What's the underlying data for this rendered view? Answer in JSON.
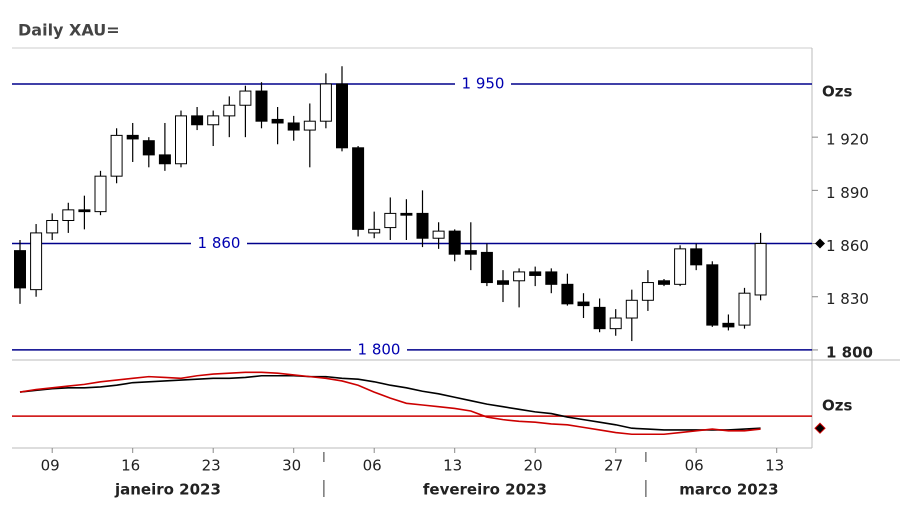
{
  "chart_data": [
    {
      "type": "candlestick",
      "title": "Daily XAU=",
      "unit_label": "Ozs",
      "x": [
        "2023-01-05",
        "2023-01-06",
        "2023-01-09",
        "2023-01-10",
        "2023-01-11",
        "2023-01-12",
        "2023-01-13",
        "2023-01-16",
        "2023-01-17",
        "2023-01-18",
        "2023-01-19",
        "2023-01-20",
        "2023-01-23",
        "2023-01-24",
        "2023-01-25",
        "2023-01-26",
        "2023-01-27",
        "2023-01-30",
        "2023-01-31",
        "2023-02-01",
        "2023-02-02",
        "2023-02-03",
        "2023-02-06",
        "2023-02-07",
        "2023-02-08",
        "2023-02-09",
        "2023-02-10",
        "2023-02-13",
        "2023-02-14",
        "2023-02-15",
        "2023-02-16",
        "2023-02-17",
        "2023-02-20",
        "2023-02-21",
        "2023-02-22",
        "2023-02-23",
        "2023-02-24",
        "2023-02-27",
        "2023-02-28",
        "2023-03-01",
        "2023-03-02",
        "2023-03-03",
        "2023-03-06",
        "2023-03-07",
        "2023-03-08",
        "2023-03-09",
        "2023-03-10"
      ],
      "open": [
        1856,
        1834,
        1866,
        1873,
        1879,
        1878,
        1898,
        1921,
        1918,
        1910,
        1905,
        1932,
        1927,
        1932,
        1938,
        1946,
        1930,
        1928,
        1924,
        1929,
        1950,
        1914,
        1866,
        1869,
        1877,
        1877,
        1863,
        1867,
        1856,
        1855,
        1839,
        1839,
        1844,
        1844,
        1837,
        1827,
        1824,
        1812,
        1818,
        1828,
        1839,
        1837,
        1857,
        1848,
        1815,
        1814,
        1831
      ],
      "high": [
        1862,
        1871,
        1877,
        1883,
        1887,
        1901,
        1925,
        1928,
        1920,
        1928,
        1935,
        1937,
        1935,
        1943,
        1949,
        1951,
        1937,
        1932,
        1939,
        1956,
        1960,
        1915,
        1878,
        1886,
        1885,
        1890,
        1872,
        1868,
        1872,
        1860,
        1845,
        1846,
        1847,
        1846,
        1843,
        1832,
        1829,
        1823,
        1834,
        1845,
        1840,
        1859,
        1860,
        1850,
        1820,
        1835,
        1866
      ],
      "low": [
        1826,
        1830,
        1862,
        1866,
        1868,
        1876,
        1894,
        1906,
        1903,
        1901,
        1903,
        1924,
        1915,
        1920,
        1920,
        1925,
        1916,
        1918,
        1903,
        1925,
        1912,
        1864,
        1863,
        1862,
        1862,
        1858,
        1857,
        1850,
        1845,
        1836,
        1827,
        1824,
        1836,
        1832,
        1825,
        1818,
        1810,
        1808,
        1805,
        1822,
        1836,
        1836,
        1845,
        1813,
        1811,
        1812,
        1828
      ],
      "close": [
        1835,
        1866,
        1873,
        1879,
        1878,
        1898,
        1921,
        1919,
        1910,
        1905,
        1932,
        1927,
        1932,
        1938,
        1946,
        1929,
        1928,
        1924,
        1929,
        1950,
        1914,
        1868,
        1868,
        1877,
        1876,
        1863,
        1867,
        1854,
        1854,
        1838,
        1837,
        1844,
        1842,
        1837,
        1826,
        1825,
        1812,
        1818,
        1828,
        1838,
        1837,
        1857,
        1848,
        1814,
        1813,
        1832,
        1860
      ],
      "up_color": "#ffffff",
      "down_color": "#000000",
      "ylim": [
        1795,
        1970
      ],
      "yticks": [
        {
          "value": 1800,
          "label": "1 800"
        },
        {
          "value": 1830,
          "label": "1 830"
        },
        {
          "value": 1860,
          "label": "1 860"
        },
        {
          "value": 1890,
          "label": "1 890"
        },
        {
          "value": 1920,
          "label": "1 920"
        }
      ],
      "levels": [
        {
          "value": 1950,
          "label": "1 950"
        },
        {
          "value": 1860,
          "label": "1 860"
        },
        {
          "value": 1800,
          "label": "1 800"
        }
      ],
      "level_color": "#00008b",
      "xticks": [
        {
          "value": "2023-01-09",
          "label": "09"
        },
        {
          "value": "2023-01-16",
          "label": "16"
        },
        {
          "value": "2023-01-23",
          "label": "23"
        },
        {
          "value": "2023-01-30",
          "label": "30"
        },
        {
          "value": "2023-02-06",
          "label": "06"
        },
        {
          "value": "2023-02-13",
          "label": "13"
        },
        {
          "value": "2023-02-20",
          "label": "20"
        },
        {
          "value": "2023-02-27",
          "label": "27"
        },
        {
          "value": "2023-03-06",
          "label": "06"
        },
        {
          "value": "2023-03-13",
          "label": "13"
        }
      ],
      "month_labels": [
        "janeiro 2023",
        "fevereiro 2023",
        "marco 2023"
      ]
    },
    {
      "type": "line",
      "unit_label": "Ozs",
      "ylim": [
        0,
        100
      ],
      "reference_line": 37,
      "reference_color": "#cc0000",
      "series": [
        {
          "color": "#000000",
          "values": [
            65,
            67,
            69,
            70,
            70,
            71,
            73,
            76,
            77,
            78,
            79,
            80,
            81,
            81,
            82,
            84,
            84,
            84,
            83,
            83,
            81,
            80,
            77,
            73,
            70,
            66,
            63,
            59,
            55,
            51,
            48,
            45,
            42,
            40,
            36,
            33,
            30,
            27,
            23,
            22,
            21,
            21,
            21,
            21,
            21,
            22,
            23
          ]
        },
        {
          "color": "#cc0000",
          "values": [
            65,
            68,
            70,
            72,
            74,
            77,
            79,
            81,
            83,
            82,
            81,
            84,
            86,
            87,
            88,
            88,
            87,
            85,
            83,
            81,
            78,
            73,
            65,
            58,
            52,
            50,
            48,
            46,
            43,
            36,
            33,
            31,
            30,
            28,
            27,
            24,
            21,
            18,
            16,
            16,
            16,
            18,
            20,
            22,
            20,
            20,
            22
          ]
        }
      ]
    }
  ]
}
